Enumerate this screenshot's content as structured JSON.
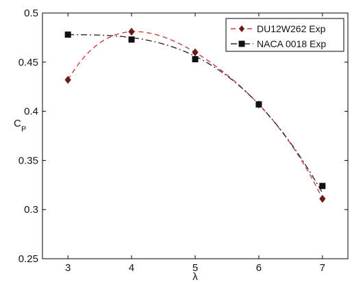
{
  "chart_data": {
    "type": "line",
    "x": [
      3,
      4,
      5,
      6,
      7
    ],
    "xlabel": "λ",
    "ylabel": "C",
    "ylabel_subscript": "P",
    "xlim": [
      2.6,
      7.4
    ],
    "ylim": [
      0.25,
      0.5
    ],
    "xticks": [
      "3",
      "4",
      "5",
      "6",
      "7"
    ],
    "yticks": [
      "0.25",
      "0.3",
      "0.35",
      "0.4",
      "0.45",
      "0.5"
    ],
    "grid": false,
    "legend_position": "top-right",
    "series": [
      {
        "name": "DU12W262 Exp",
        "values": [
          0.432,
          0.481,
          0.46,
          0.407,
          0.311
        ],
        "fit_values": [
          0.432,
          0.481,
          0.46,
          0.407,
          0.311
        ],
        "color": "#d43a3a",
        "marker_color": "#6b1a1a",
        "marker": "diamond",
        "line_style": "dashed"
      },
      {
        "name": "NACA 0018 Exp",
        "values": [
          0.478,
          0.473,
          0.453,
          0.407,
          0.324
        ],
        "fit_values": [
          0.478,
          0.475,
          0.456,
          0.407,
          0.317
        ],
        "color": "#2a2a2a",
        "marker_color": "#111111",
        "marker": "square",
        "line_style": "dashdot"
      }
    ]
  }
}
